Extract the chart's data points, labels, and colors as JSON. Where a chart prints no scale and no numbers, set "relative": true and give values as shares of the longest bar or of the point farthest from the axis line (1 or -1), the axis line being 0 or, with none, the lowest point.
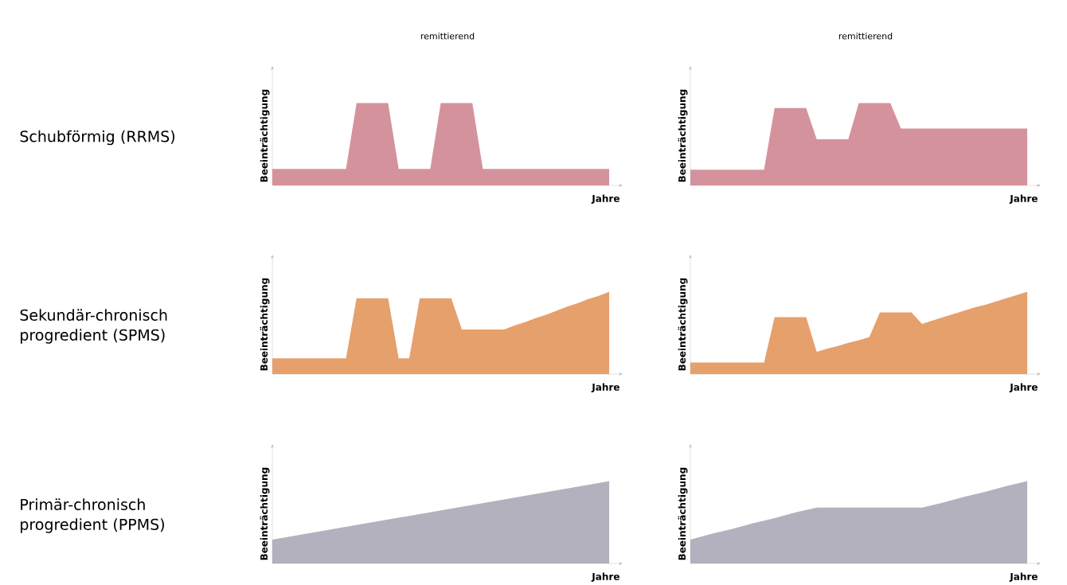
{
  "chart_data": [
    {
      "type": "area",
      "relative": true,
      "title": "remittierend",
      "xlabel": "Jahre",
      "ylabel": "Beeinträchtigung",
      "annotations": [
        "Schubförmig (RRMS)"
      ],
      "color": "#d4939c",
      "categories": [
        null,
        null,
        null,
        null,
        null,
        null,
        null,
        null,
        null,
        null,
        null,
        null,
        null,
        null,
        null,
        null,
        null,
        null,
        null,
        null,
        null,
        null,
        null,
        null,
        null,
        null,
        null,
        null,
        null,
        null,
        null,
        null,
        null
      ],
      "values": [
        0.2,
        0.2,
        0.2,
        0.2,
        0.2,
        0.2,
        0.2,
        0.2,
        1,
        1,
        1,
        1,
        0.2,
        0.2,
        0.2,
        0.2,
        1,
        1,
        1,
        1,
        0.2,
        0.2,
        0.2,
        0.2,
        0.2,
        0.2,
        0.2,
        0.2,
        0.2,
        0.2,
        0.2,
        0.2,
        0.2
      ]
    },
    {
      "type": "area",
      "relative": true,
      "title": "remittierend",
      "xlabel": "Jahre",
      "ylabel": "Beeinträchtigung",
      "color": "#d4939c",
      "categories": [
        null,
        null,
        null,
        null,
        null,
        null,
        null,
        null,
        null,
        null,
        null,
        null,
        null,
        null,
        null,
        null,
        null,
        null,
        null,
        null,
        null,
        null,
        null,
        null,
        null,
        null,
        null,
        null,
        null,
        null,
        null,
        null,
        null
      ],
      "values": [
        0.19,
        0.19,
        0.19,
        0.19,
        0.19,
        0.19,
        0.19,
        0.19,
        0.94,
        0.94,
        0.94,
        0.94,
        0.56,
        0.56,
        0.56,
        0.56,
        1,
        1,
        1,
        1,
        0.69,
        0.69,
        0.69,
        0.69,
        0.69,
        0.69,
        0.69,
        0.69,
        0.69,
        0.69,
        0.69,
        0.69,
        0.69
      ]
    },
    {
      "type": "area",
      "relative": true,
      "xlabel": "Jahre",
      "ylabel": "Beeinträchtigung",
      "annotations": [
        "Sekundär-chronisch progredient (SPMS)"
      ],
      "color": "#e6a06c",
      "categories": [
        null,
        null,
        null,
        null,
        null,
        null,
        null,
        null,
        null,
        null,
        null,
        null,
        null,
        null,
        null,
        null,
        null,
        null,
        null,
        null,
        null,
        null,
        null,
        null,
        null,
        null,
        null,
        null,
        null,
        null,
        null,
        null,
        null
      ],
      "values": [
        0.19,
        0.19,
        0.19,
        0.19,
        0.19,
        0.19,
        0.19,
        0.19,
        0.92,
        0.92,
        0.92,
        0.92,
        0.19,
        0.19,
        0.92,
        0.92,
        0.92,
        0.92,
        0.54,
        0.54,
        0.54,
        0.54,
        0.54,
        0.59,
        0.63,
        0.68,
        0.72,
        0.77,
        0.82,
        0.86,
        0.91,
        0.95,
        1
      ]
    },
    {
      "type": "area",
      "relative": true,
      "xlabel": "Jahre",
      "ylabel": "Beeinträchtigung",
      "color": "#e6a06c",
      "categories": [
        null,
        null,
        null,
        null,
        null,
        null,
        null,
        null,
        null,
        null,
        null,
        null,
        null,
        null,
        null,
        null,
        null,
        null,
        null,
        null,
        null,
        null,
        null,
        null,
        null,
        null,
        null,
        null,
        null,
        null,
        null,
        null,
        null
      ],
      "values": [
        0.14,
        0.14,
        0.14,
        0.14,
        0.14,
        0.14,
        0.14,
        0.14,
        0.69,
        0.69,
        0.69,
        0.69,
        0.27,
        0.31,
        0.34,
        0.38,
        0.41,
        0.45,
        0.75,
        0.75,
        0.75,
        0.75,
        0.61,
        0.65,
        0.69,
        0.73,
        0.77,
        0.81,
        0.84,
        0.88,
        0.92,
        0.96,
        1
      ]
    },
    {
      "type": "area",
      "relative": true,
      "xlabel": "Jahre",
      "ylabel": "Beeinträchtigung",
      "annotations": [
        "Primär-chronisch progredient (PPMS)"
      ],
      "color": "#b3b1bd",
      "categories": [
        null,
        null
      ],
      "values": [
        0.29,
        1
      ]
    },
    {
      "type": "area",
      "relative": true,
      "xlabel": "Jahre",
      "ylabel": "Beeinträchtigung",
      "color": "#b3b1bd",
      "categories": [
        null,
        null,
        null,
        null,
        null,
        null,
        null,
        null,
        null,
        null,
        null,
        null,
        null,
        null,
        null,
        null,
        null
      ],
      "values": [
        0.29,
        0.36,
        0.42,
        0.49,
        0.55,
        0.62,
        0.68,
        0.68,
        0.68,
        0.68,
        0.68,
        0.68,
        0.74,
        0.81,
        0.87,
        0.94,
        1
      ]
    }
  ]
}
